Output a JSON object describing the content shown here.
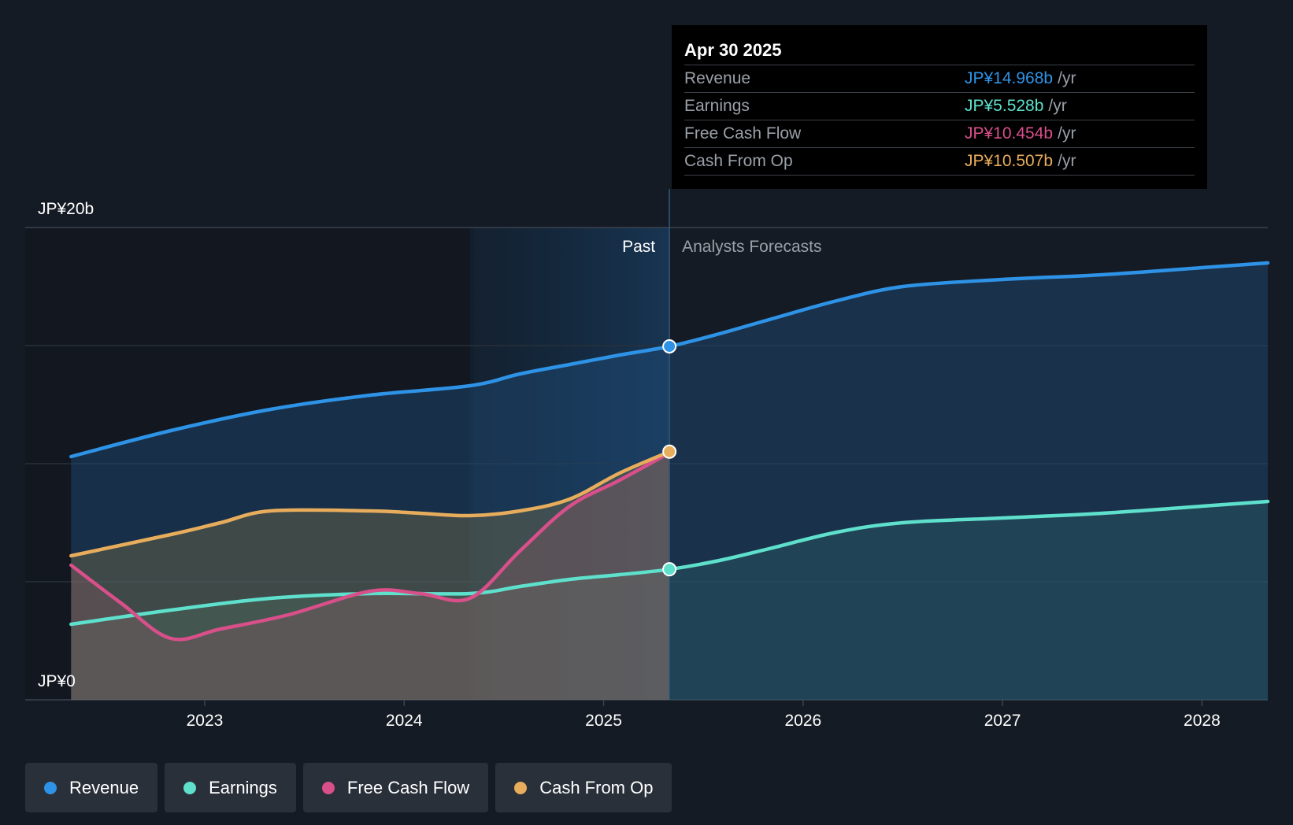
{
  "chart_data": {
    "type": "line",
    "title": "",
    "y_unit": "JP¥ billions",
    "ylim": [
      0,
      20
    ],
    "y_tick_labels": {
      "top": "JP¥20b",
      "bottom": "JP¥0"
    },
    "x_tick_labels": [
      "2023",
      "2024",
      "2025",
      "2026",
      "2027",
      "2028"
    ],
    "x_ticks": [
      2023,
      2024,
      2025,
      2026,
      2027,
      2028
    ],
    "xlim": [
      2022.1,
      2028.33
    ],
    "past_label": "Past",
    "forecast_label": "Analysts Forecasts",
    "divider_x": 2025.33,
    "highlight_start_x": 2024.33,
    "series": [
      {
        "name": "Revenue",
        "color": "#2e93e6",
        "x": [
          2022.33,
          2022.83,
          2023.33,
          2023.83,
          2024.33,
          2024.58,
          2024.83,
          2025.08,
          2025.33,
          2025.58,
          2025.83,
          2026.17,
          2026.5,
          2027.0,
          2027.5,
          2028.0,
          2028.33
        ],
        "values": [
          10.3,
          11.4,
          12.3,
          12.9,
          13.3,
          13.8,
          14.2,
          14.6,
          14.968,
          15.5,
          16.1,
          16.9,
          17.5,
          17.8,
          18.0,
          18.3,
          18.5
        ]
      },
      {
        "name": "Earnings",
        "color": "#5ee0cc",
        "x": [
          2022.33,
          2022.83,
          2023.33,
          2023.83,
          2024.33,
          2024.58,
          2024.83,
          2025.08,
          2025.33,
          2025.58,
          2025.83,
          2026.17,
          2026.5,
          2027.0,
          2027.5,
          2028.0,
          2028.33
        ],
        "values": [
          3.2,
          3.8,
          4.3,
          4.5,
          4.5,
          4.8,
          5.1,
          5.3,
          5.528,
          5.9,
          6.4,
          7.1,
          7.5,
          7.7,
          7.9,
          8.2,
          8.4
        ]
      },
      {
        "name": "Free Cash Flow",
        "color": "#d84f8a",
        "x": [
          2022.33,
          2022.58,
          2022.83,
          2023.08,
          2023.42,
          2023.83,
          2024.08,
          2024.33,
          2024.58,
          2024.83,
          2025.08,
          2025.33
        ],
        "values": [
          5.7,
          4.1,
          2.6,
          3.0,
          3.6,
          4.6,
          4.5,
          4.3,
          6.3,
          8.2,
          9.3,
          10.454
        ]
      },
      {
        "name": "Cash From Op",
        "color": "#e8ad5c",
        "x": [
          2022.33,
          2022.83,
          2023.08,
          2023.33,
          2023.83,
          2024.08,
          2024.33,
          2024.58,
          2024.83,
          2025.08,
          2025.33
        ],
        "values": [
          6.1,
          7.0,
          7.5,
          8.0,
          8.0,
          7.9,
          7.8,
          8.0,
          8.5,
          9.6,
          10.507
        ]
      }
    ],
    "markers": [
      {
        "series": "Revenue",
        "x": 2025.33,
        "value": 14.968
      },
      {
        "series": "Earnings",
        "x": 2025.33,
        "value": 5.528
      },
      {
        "series": "Cash From Op",
        "x": 2025.33,
        "value": 10.507
      }
    ]
  },
  "tooltip": {
    "date": "Apr 30 2025",
    "unit": "/yr",
    "rows": [
      {
        "label": "Revenue",
        "value": "JP¥14.968b",
        "color": "#2e93e6"
      },
      {
        "label": "Earnings",
        "value": "JP¥5.528b",
        "color": "#5ee0cc"
      },
      {
        "label": "Free Cash Flow",
        "value": "JP¥10.454b",
        "color": "#d84f8a"
      },
      {
        "label": "Cash From Op",
        "value": "JP¥10.507b",
        "color": "#e8ad5c"
      }
    ]
  },
  "legend": {
    "items": [
      {
        "label": "Revenue",
        "color": "#2e93e6"
      },
      {
        "label": "Earnings",
        "color": "#5ee0cc"
      },
      {
        "label": "Free Cash Flow",
        "color": "#d84f8a"
      },
      {
        "label": "Cash From Op",
        "color": "#e8ad5c"
      }
    ]
  }
}
